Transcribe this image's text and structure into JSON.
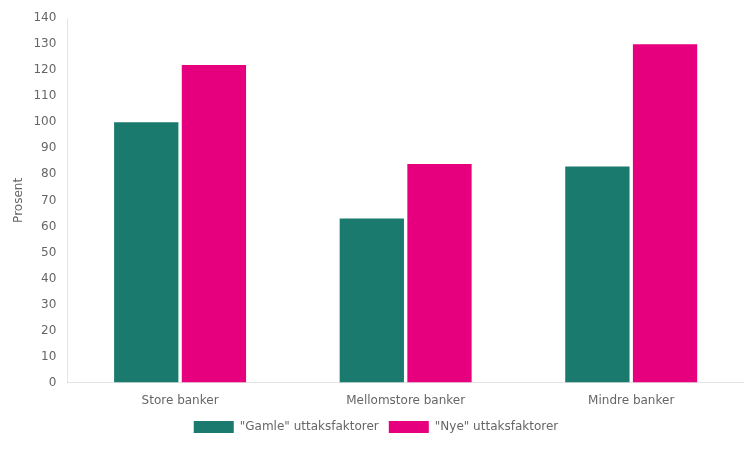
{
  "chart_data": {
    "type": "bar",
    "categories": [
      "Store banker",
      "Mellomstore banker",
      "Mindre banker"
    ],
    "series": [
      {
        "name": "\"Gamle\" uttaksfaktorer",
        "color": "#1a7a6e",
        "values": [
          100,
          63,
          83
        ]
      },
      {
        "name": "\"Nye\" uttaksfaktorer",
        "color": "#E6007E",
        "values": [
          122,
          84,
          130
        ]
      }
    ],
    "ylabel": "Prosent",
    "ylim": [
      0,
      140
    ],
    "yticks": [
      0,
      10,
      20,
      30,
      40,
      50,
      60,
      70,
      80,
      90,
      100,
      110,
      120,
      130,
      140
    ],
    "grid": false,
    "legend": "bottom"
  }
}
